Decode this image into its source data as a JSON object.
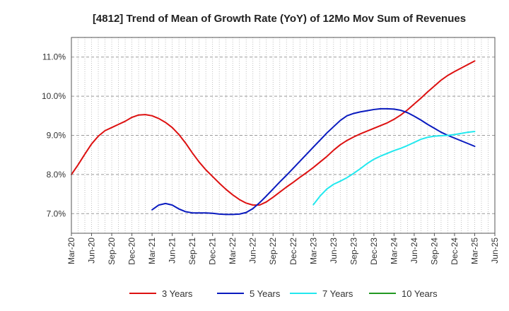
{
  "chart_data": {
    "type": "line",
    "title": "[4812]  Trend of Mean of Growth Rate (YoY) of 12Mo Mov Sum of Revenues",
    "xlabel": "",
    "ylabel": "",
    "ylim": [
      6.5,
      11.5
    ],
    "yticks": [
      "7.0%",
      "8.0%",
      "9.0%",
      "10.0%",
      "11.0%"
    ],
    "ytick_values": [
      7.0,
      8.0,
      9.0,
      10.0,
      11.0
    ],
    "x_labels": [
      "Mar-20",
      "Jun-20",
      "Sep-20",
      "Dec-20",
      "Mar-21",
      "Jun-21",
      "Sep-21",
      "Dec-21",
      "Mar-22",
      "Jun-22",
      "Sep-22",
      "Dec-22",
      "Mar-23",
      "Jun-23",
      "Sep-23",
      "Dec-23",
      "Mar-24",
      "Jun-24",
      "Sep-24",
      "Dec-24",
      "Mar-25",
      "Jun-25"
    ],
    "x_months": [
      "2020-03",
      "2020-04",
      "2020-05",
      "2020-06",
      "2020-07",
      "2020-08",
      "2020-09",
      "2020-10",
      "2020-11",
      "2020-12",
      "2021-01",
      "2021-02",
      "2021-03",
      "2021-04",
      "2021-05",
      "2021-06",
      "2021-07",
      "2021-08",
      "2021-09",
      "2021-10",
      "2021-11",
      "2021-12",
      "2022-01",
      "2022-02",
      "2022-03",
      "2022-04",
      "2022-05",
      "2022-06",
      "2022-07",
      "2022-08",
      "2022-09",
      "2022-10",
      "2022-11",
      "2022-12",
      "2023-01",
      "2023-02",
      "2023-03",
      "2023-04",
      "2023-05",
      "2023-06",
      "2023-07",
      "2023-08",
      "2023-09",
      "2023-10",
      "2023-11",
      "2023-12",
      "2024-01",
      "2024-02",
      "2024-03",
      "2024-04",
      "2024-05",
      "2024-06",
      "2024-07",
      "2024-08",
      "2024-09",
      "2024-10",
      "2024-11",
      "2024-12",
      "2025-01",
      "2025-02",
      "2025-03",
      "2025-04",
      "2025-05",
      "2025-06"
    ],
    "grid": true,
    "legend_position": "bottom",
    "series": [
      {
        "name": "3 Years",
        "color": "#dd1111",
        "start_index": 0,
        "values": [
          8.0,
          8.25,
          8.52,
          8.78,
          8.98,
          9.12,
          9.2,
          9.28,
          9.36,
          9.46,
          9.52,
          9.53,
          9.5,
          9.43,
          9.33,
          9.2,
          9.02,
          8.8,
          8.55,
          8.32,
          8.12,
          7.95,
          7.78,
          7.62,
          7.48,
          7.36,
          7.27,
          7.22,
          7.22,
          7.3,
          7.42,
          7.55,
          7.68,
          7.8,
          7.93,
          8.05,
          8.18,
          8.32,
          8.46,
          8.62,
          8.76,
          8.87,
          8.96,
          9.04,
          9.11,
          9.18,
          9.25,
          9.32,
          9.41,
          9.52,
          9.65,
          9.8,
          9.95,
          10.11,
          10.26,
          10.41,
          10.53,
          10.63,
          10.72,
          10.81,
          10.9
        ]
      },
      {
        "name": "5 Years",
        "color": "#0a1bbf",
        "start_index": 12,
        "values": [
          7.1,
          7.22,
          7.26,
          7.22,
          7.12,
          7.05,
          7.02,
          7.02,
          7.02,
          7.01,
          6.99,
          6.98,
          6.98,
          6.99,
          7.03,
          7.13,
          7.28,
          7.45,
          7.63,
          7.81,
          7.98,
          8.16,
          8.34,
          8.52,
          8.7,
          8.88,
          9.06,
          9.22,
          9.38,
          9.5,
          9.56,
          9.6,
          9.63,
          9.66,
          9.68,
          9.68,
          9.67,
          9.64,
          9.58,
          9.49,
          9.39,
          9.28,
          9.18,
          9.08,
          9.0,
          8.93,
          8.86,
          8.79,
          8.72
        ]
      },
      {
        "name": "7 Years",
        "color": "#22e8ee",
        "start_index": 36,
        "values": [
          7.23,
          7.45,
          7.63,
          7.75,
          7.83,
          7.92,
          8.03,
          8.15,
          8.28,
          8.39,
          8.47,
          8.54,
          8.61,
          8.67,
          8.74,
          8.82,
          8.9,
          8.95,
          8.98,
          8.99,
          9.0,
          9.02,
          9.05,
          9.08,
          9.1
        ]
      },
      {
        "name": "10 Years",
        "color": "#229922",
        "start_index": 0,
        "values": []
      }
    ]
  }
}
